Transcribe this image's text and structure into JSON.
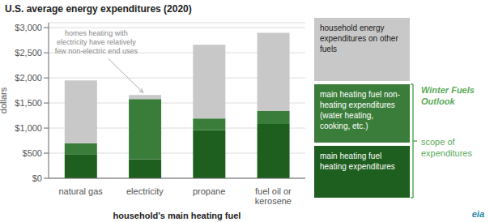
{
  "chart_data": {
    "type": "bar",
    "title": "U.S. average energy expenditures (2020)",
    "xlabel": "household's main heating fuel",
    "ylabel": "dollars",
    "categories": [
      "natural gas",
      "electricity",
      "propane",
      "fuel oil or\nkerosene"
    ],
    "series": [
      {
        "name": "main heating fuel heating expenditures",
        "color": "#1e5e1e",
        "values": [
          480,
          380,
          960,
          1080
        ]
      },
      {
        "name": "main heating fuel non-heating expenditures (water heating, cooking, etc.)",
        "color": "#3a7d3a",
        "values": [
          220,
          1200,
          230,
          260
        ]
      },
      {
        "name": "household energy expenditures on other fuels",
        "color": "#c8c8c8",
        "values": [
          1250,
          80,
          1470,
          1560
        ]
      }
    ],
    "stacked": true,
    "ylim": [
      0,
      3100
    ],
    "yticks": [
      {
        "value": 0,
        "label": "$0"
      },
      {
        "value": 500,
        "label": "$500"
      },
      {
        "value": 1000,
        "label": "$1,000"
      },
      {
        "value": 1500,
        "label": "$1,500"
      },
      {
        "value": 2000,
        "label": "$2,000"
      },
      {
        "value": 2500,
        "label": "$2,500"
      },
      {
        "value": 3000,
        "label": "$3,000"
      }
    ],
    "grid": true,
    "legend": "right",
    "annotations": [
      {
        "text": "homes heating with\nelectricity have relatively\nfew non-electric end uses",
        "x": "electricity",
        "y": 1640
      },
      {
        "text": "Winter Fuels\nOutlook",
        "color": "#5aaa5a"
      },
      {
        "text": "scope of\nexpenditures",
        "color": "#5aaa5a"
      },
      {
        "text": "eia",
        "color": "#2288aa"
      }
    ]
  }
}
